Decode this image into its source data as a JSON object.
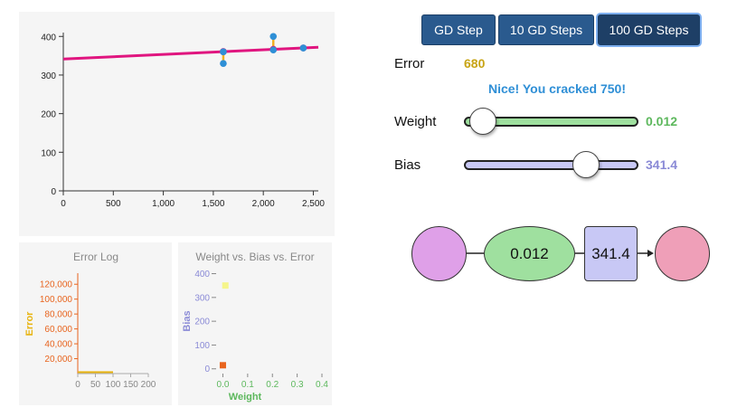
{
  "buttons": {
    "step1": "GD Step",
    "step10": "10 GD Steps",
    "step100": "100 GD Steps"
  },
  "error": {
    "label": "Error",
    "value": "680"
  },
  "message": "Nice! You cracked 750!",
  "weight": {
    "label": "Weight",
    "value": "0.012",
    "slider_fraction": 0.11
  },
  "bias": {
    "label": "Bias",
    "value": "341.4",
    "slider_fraction": 0.7
  },
  "network": {
    "weight_node": "0.012",
    "bias_node": "341.4"
  },
  "colors": {
    "button_bg": "#2a5a8e",
    "error_value": "#c8a414",
    "message": "#2f8fd6",
    "weight": "#5db85d",
    "weight_fill": "#9fe09f",
    "bias": "#8a8ad6",
    "bias_fill": "#c8c8f5",
    "input_node": "#dfa0e8",
    "output_node": "#ef9fb8",
    "fit_line": "#e0157f",
    "data_point": "#2e8fd6",
    "residual": "#f0b020",
    "errlog_axis": "#e8641e",
    "errlog_label": "#e8b410"
  },
  "chart_data": [
    {
      "type": "scatter",
      "x": [
        1600,
        1600,
        2100,
        2100,
        2400
      ],
      "y": [
        330,
        360,
        400,
        365,
        370
      ],
      "fit_line": {
        "weight": 0.012,
        "bias": 341.4
      },
      "xlim": [
        0,
        2550
      ],
      "ylim": [
        0,
        410
      ],
      "xticks": [
        "0",
        "500",
        "1,000",
        "1,500",
        "2,000",
        "2,500"
      ],
      "xtick_values": [
        0,
        500,
        1000,
        1500,
        2000,
        2500
      ],
      "yticks": [
        "0",
        "100",
        "200",
        "300",
        "400"
      ],
      "ytick_values": [
        0,
        100,
        200,
        300,
        400
      ],
      "grid": false
    },
    {
      "type": "area",
      "title": "Error Log",
      "ylabel": "Error",
      "x": [
        0,
        100
      ],
      "y": [
        680,
        680
      ],
      "xlim": [
        0,
        200
      ],
      "ylim": [
        0,
        130000
      ],
      "xticks": [
        "0",
        "50",
        "100",
        "150",
        "200"
      ],
      "xtick_values": [
        0,
        50,
        100,
        150,
        200
      ],
      "yticks": [
        "20,000",
        "40,000",
        "60,000",
        "80,000",
        "100,000",
        "120,000"
      ],
      "ytick_values": [
        20000,
        40000,
        60000,
        80000,
        100000,
        120000
      ]
    },
    {
      "type": "scatter",
      "title": "Weight vs. Bias vs. Error",
      "xlabel": "Weight",
      "ylabel": "Bias",
      "points": [
        {
          "weight": 0.0,
          "bias": 15,
          "color": "#e8641e"
        },
        {
          "weight": 0.01,
          "bias": 350,
          "color": "#f5f58a"
        }
      ],
      "xlim": [
        -0.02,
        0.4
      ],
      "ylim": [
        -20,
        440
      ],
      "xticks": [
        "0.0",
        "0.1",
        "0.2",
        "0.3",
        "0.4"
      ],
      "xtick_values": [
        0.0,
        0.1,
        0.2,
        0.3,
        0.4
      ],
      "yticks": [
        "0",
        "100",
        "200",
        "300",
        "400"
      ],
      "ytick_values": [
        0,
        100,
        200,
        300,
        400
      ]
    }
  ]
}
